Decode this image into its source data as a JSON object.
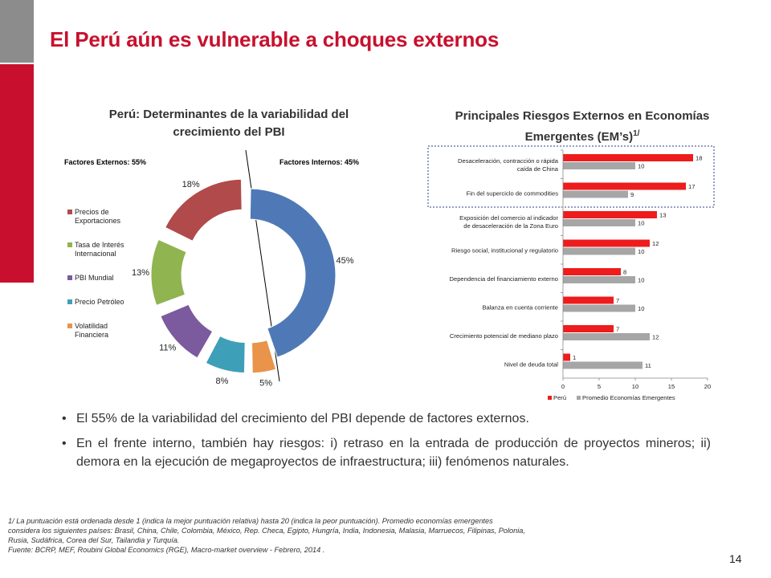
{
  "slide": {
    "title": "El Perú aún es vulnerable a choques externos",
    "page_number": "14"
  },
  "bullets": [
    "El 55% de la variabilidad del crecimiento del PBI depende de factores externos.",
    "En el frente interno, también hay riesgos: i) retraso en la entrada de producción de proyectos mineros; ii) demora en la ejecución de megaproyectos de infraestructura; iii) fenómenos naturales."
  ],
  "footnote": {
    "lines": [
      "1/ La puntuación está ordenada desde 1 (indica la mejor puntuación relativa) hasta 20 (indica la peor puntuación). Promedio economías emergentes",
      "considera los siguientes países: Brasil, China, Chile, Colombia, México, Rep. Checa, Egipto, Hungría, India, Indonesia, Malasia, Marruecos, Filipinas, Polonia,",
      "Rusia, Sudáfrica, Corea del Sur, Tailandia y Turquía.",
      "Fuente: BCRP, MEF, Roubini Global Economics (RGE), Macro-market overview - Febrero, 2014 ."
    ]
  },
  "chart_data": [
    {
      "type": "pie",
      "variant": "doughnut",
      "title_lines": [
        "Perú: Determinantes de la variabilidad del",
        "crecimiento del PBI"
      ],
      "group_labels": {
        "external": "Factores Externos: 55%",
        "internal": "Factores Internos: 45%"
      },
      "slices": [
        {
          "label": "Factores Internos",
          "value": 45,
          "data_label": "45%",
          "color": "#4f79b6",
          "in_legend": false
        },
        {
          "label": "Volatilidad Financiera",
          "value": 5,
          "data_label": "5%",
          "color": "#e9944a",
          "in_legend": true
        },
        {
          "label": "Precio Petróleo",
          "value": 8,
          "data_label": "8%",
          "color": "#3e9fb8",
          "in_legend": true
        },
        {
          "label": "PBI Mundial",
          "value": 11,
          "data_label": "11%",
          "color": "#7b5a9e",
          "in_legend": true
        },
        {
          "label": "Tasa de Interés Internacional",
          "value": 13,
          "data_label": "13%",
          "color": "#8fb450",
          "in_legend": true
        },
        {
          "label": "Precios de Exportaciones",
          "value": 18,
          "data_label": "18%",
          "color": "#b14a4a",
          "in_legend": true
        }
      ],
      "legend_items": [
        {
          "lines": [
            "Precios de",
            "Exportaciones"
          ],
          "color": "#b14a4a"
        },
        {
          "lines": [
            "Tasa de Interés",
            "Internacional"
          ],
          "color": "#8fb450"
        },
        {
          "lines": [
            "PBI Mundial"
          ],
          "color": "#7b5a9e"
        },
        {
          "lines": [
            "Precio Petróleo"
          ],
          "color": "#3e9fb8"
        },
        {
          "lines": [
            "Volatilidad",
            "Financiera"
          ],
          "color": "#e9944a"
        }
      ]
    },
    {
      "type": "bar",
      "orientation": "horizontal",
      "title_lines": [
        "Principales Riesgos Externos en Economías",
        "Emergentes (EM’s)"
      ],
      "title_superscript": "1/",
      "categories": [
        [
          "Desaceleración, contracción o rápida",
          "caída de China"
        ],
        [
          "Fin del superciclo de commodities"
        ],
        [
          "Exposición del comercio al indicador",
          "de desaceleración de la Zona Euro"
        ],
        [
          "Riesgo social, institucional y regulatorio"
        ],
        [
          "Dependencia del financiamiento externo"
        ],
        [
          "Balanza en cuenta corriente"
        ],
        [
          "Crecimiento potencial de mediano plazo"
        ],
        [
          "Nivel de deuda total"
        ]
      ],
      "series": [
        {
          "name": "Perú",
          "color": "#ee1c1c",
          "values": [
            18,
            17,
            13,
            12,
            8,
            7,
            7,
            1
          ]
        },
        {
          "name": "Promedio Economías Emergentes",
          "color": "#a6a6a6",
          "values": [
            10,
            9,
            10,
            10,
            10,
            10,
            12,
            11
          ]
        }
      ],
      "xlim": [
        0,
        20
      ],
      "xticks": [
        "0",
        "5",
        "10",
        "15",
        "20"
      ],
      "highlighted_categories": 2,
      "legend": "bottom"
    }
  ]
}
